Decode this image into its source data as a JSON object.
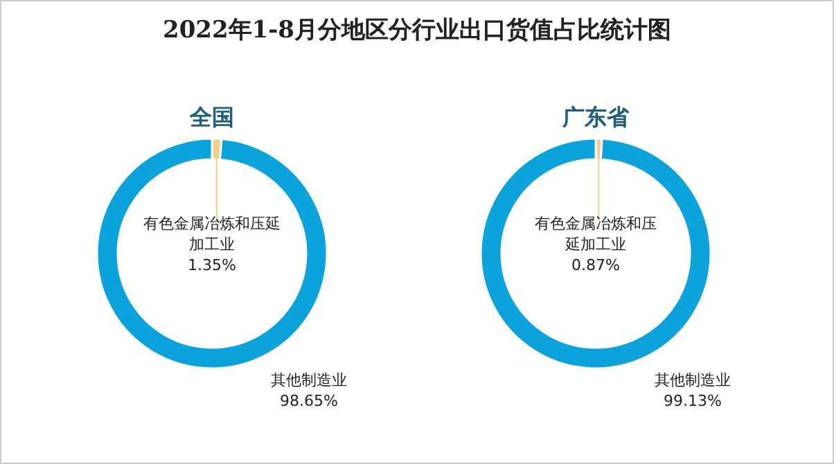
{
  "chart_data": [
    {
      "type": "donut",
      "title": "全国",
      "annotations": [
        "2022年1-8月分地区分行业出口货值占比统计图"
      ],
      "categories": [
        "有色金属冶炼和压延加工业",
        "其他制造业"
      ],
      "values": [
        1.35,
        98.65
      ],
      "colors": [
        "#f2d08a",
        "#0aa3dc"
      ],
      "value_labels": [
        "1.35%",
        "98.65%"
      ]
    },
    {
      "type": "donut",
      "title": "广东省",
      "categories": [
        "有色金属冶炼和压延加工业",
        "其他制造业"
      ],
      "values": [
        0.87,
        99.13
      ],
      "colors": [
        "#f2d08a",
        "#0aa3dc"
      ],
      "value_labels": [
        "0.87%",
        "99.13%"
      ]
    }
  ]
}
